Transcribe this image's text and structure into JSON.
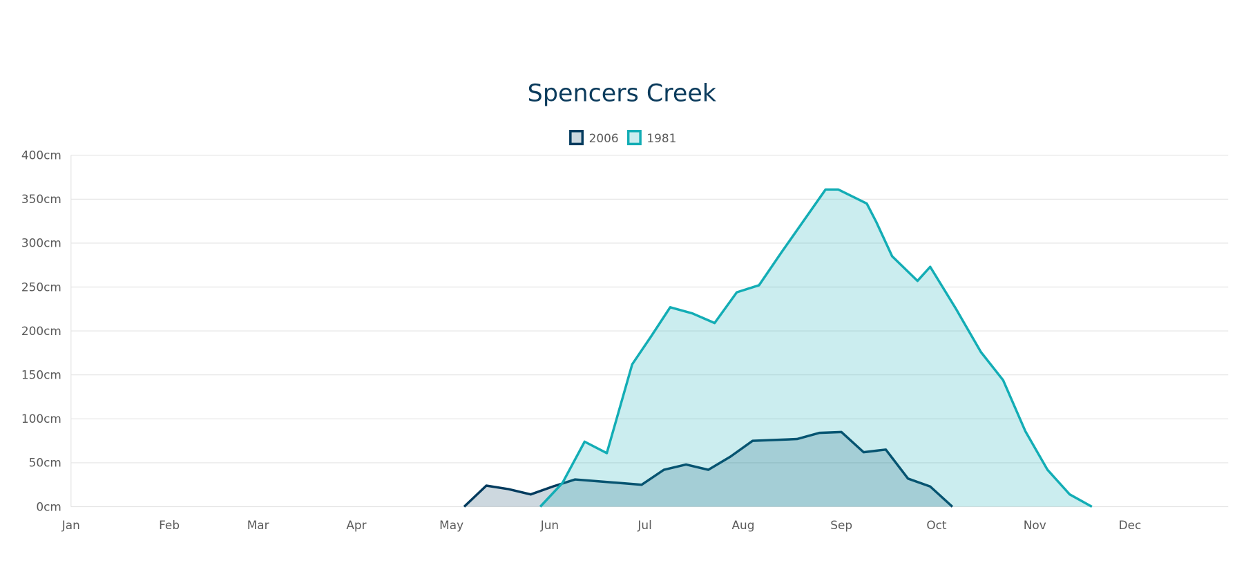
{
  "chart_data": {
    "type": "area",
    "title": "Spencers Creek",
    "xlabel": "",
    "ylabel": "",
    "x_ticks": [
      "Jan",
      "Feb",
      "Mar",
      "Apr",
      "May",
      "Jun",
      "Jul",
      "Aug",
      "Sep",
      "Oct",
      "Nov",
      "Dec"
    ],
    "y_ticks": [
      "0cm",
      "50cm",
      "100cm",
      "150cm",
      "200cm",
      "250cm",
      "300cm",
      "350cm",
      "400cm"
    ],
    "ylim": [
      0,
      400
    ],
    "xlim": [
      "01-01",
      "12-31"
    ],
    "grid": true,
    "legend_position": "top-center",
    "series": [
      {
        "name": "2006",
        "color": "#033b5e",
        "fill": "rgba(3,59,94,0.20)",
        "x": [
          "05-05",
          "05-12",
          "05-19",
          "05-26",
          "06-02",
          "06-09",
          "06-16",
          "06-23",
          "06-30",
          "07-07",
          "07-14",
          "07-21",
          "07-28",
          "08-04",
          "08-11",
          "08-18",
          "08-25",
          "09-01",
          "09-08",
          "09-15",
          "09-22",
          "09-29",
          "10-06"
        ],
        "values": [
          0,
          24,
          20,
          14,
          23,
          31,
          29,
          27,
          25,
          42,
          48,
          42,
          57,
          75,
          76,
          77,
          84,
          85,
          62,
          65,
          32,
          23,
          0
        ]
      },
      {
        "name": "1981",
        "color": "#13adb5",
        "fill": "rgba(19,173,181,0.22)",
        "x": [
          "05-29",
          "06-05",
          "06-12",
          "06-19",
          "06-27",
          "07-03",
          "07-09",
          "07-16",
          "07-23",
          "07-30",
          "08-06",
          "08-13",
          "08-20",
          "08-27",
          "08-31",
          "09-09",
          "09-12",
          "09-17",
          "09-25",
          "09-29",
          "10-07",
          "10-15",
          "10-22",
          "10-29",
          "11-05",
          "11-12",
          "11-19"
        ],
        "values": [
          0,
          27,
          74,
          61,
          162,
          194,
          227,
          220,
          209,
          244,
          252,
          289,
          325,
          361,
          361,
          345,
          324,
          285,
          257,
          273,
          226,
          176,
          144,
          86,
          42,
          14,
          0
        ]
      }
    ]
  }
}
